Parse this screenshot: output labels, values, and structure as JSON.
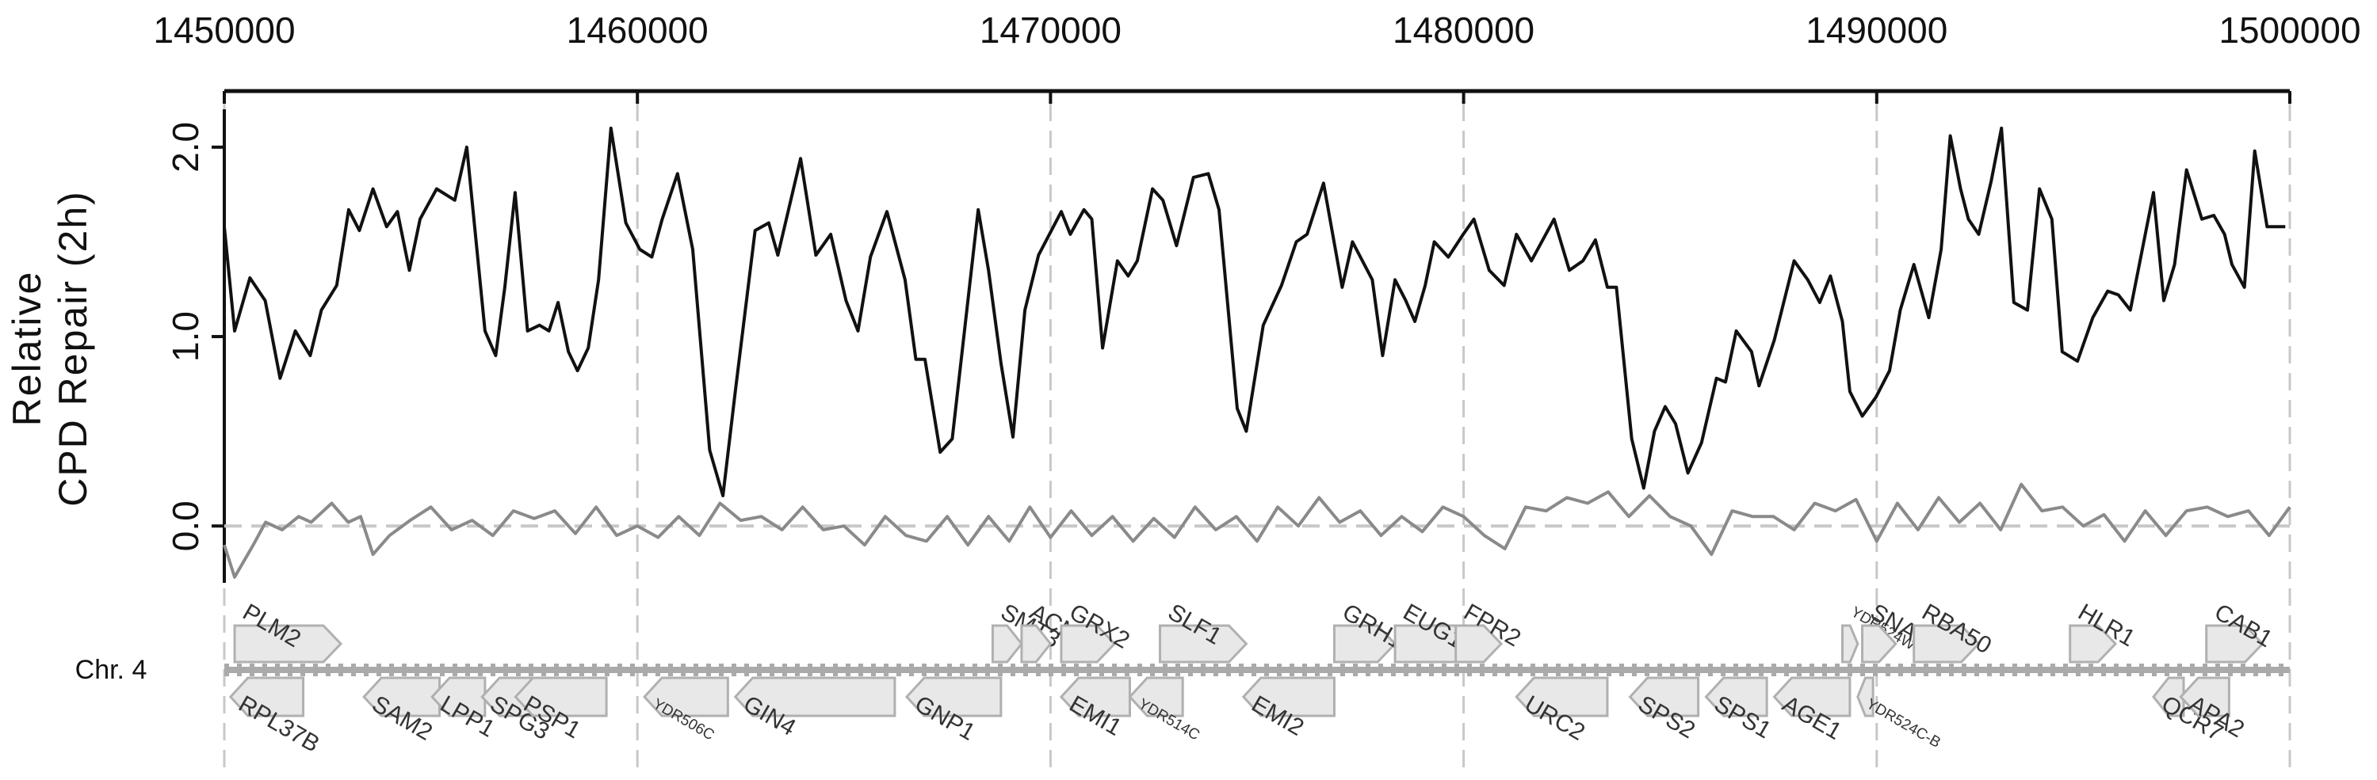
{
  "chart_data": {
    "type": "line",
    "ylabel": [
      "Relative",
      "CPD Repair (2h)"
    ],
    "track_label": "Chr. 4",
    "xlim": [
      1450000,
      1500000
    ],
    "xticks": [
      1450000,
      1460000,
      1470000,
      1480000,
      1490000,
      1500000
    ],
    "ylim": [
      -0.3,
      2.2
    ],
    "yticks": [
      {
        "value": 0,
        "label": "0.0"
      },
      {
        "value": 1,
        "label": "1.0"
      },
      {
        "value": 2,
        "label": "2.0"
      }
    ],
    "grid": "x",
    "hline": 0,
    "series": [
      {
        "color": "#111111",
        "x": [
          1450000,
          1450250,
          1450620,
          1450990,
          1451350,
          1451720,
          1452080,
          1452350,
          1452720,
          1453010,
          1453270,
          1453600,
          1453930,
          1454190,
          1454480,
          1454740,
          1455140,
          1455580,
          1455870,
          1456310,
          1456570,
          1456790,
          1457040,
          1457340,
          1457630,
          1457860,
          1458080,
          1458330,
          1458550,
          1458810,
          1459060,
          1459360,
          1459720,
          1460060,
          1460350,
          1460600,
          1460970,
          1461340,
          1461750,
          1462070,
          1462370,
          1462850,
          1463180,
          1463400,
          1463950,
          1464320,
          1464680,
          1465050,
          1465340,
          1465640,
          1466040,
          1466480,
          1466740,
          1466960,
          1467330,
          1467620,
          1468250,
          1468500,
          1468800,
          1469090,
          1469380,
          1469710,
          1470260,
          1470480,
          1470810,
          1471000,
          1471260,
          1471620,
          1471880,
          1472100,
          1472470,
          1472720,
          1473050,
          1473460,
          1473820,
          1474080,
          1474520,
          1474740,
          1475150,
          1475590,
          1475950,
          1476210,
          1476610,
          1477060,
          1477310,
          1477790,
          1478040,
          1478340,
          1478600,
          1478820,
          1479070,
          1479290,
          1479630,
          1479990,
          1480250,
          1480620,
          1480980,
          1481280,
          1481640,
          1482190,
          1482560,
          1482890,
          1483190,
          1483480,
          1483700,
          1484070,
          1484360,
          1484620,
          1484880,
          1485130,
          1485430,
          1485760,
          1486120,
          1486340,
          1486600,
          1486970,
          1487150,
          1487520,
          1488000,
          1488330,
          1488620,
          1488880,
          1489170,
          1489350,
          1489650,
          1489980,
          1490310,
          1490570,
          1490900,
          1491260,
          1491560,
          1491780,
          1492030,
          1492220,
          1492470,
          1492770,
          1493020,
          1493320,
          1493650,
          1493940,
          1494240,
          1494490,
          1494860,
          1495230,
          1495590,
          1495850,
          1496140,
          1496700,
          1496950,
          1497210,
          1497500,
          1497870,
          1498160,
          1498420,
          1498600,
          1498900,
          1499150,
          1499450,
          1499890
        ],
        "values": [
          1.58,
          1.03,
          1.31,
          1.19,
          0.78,
          1.03,
          0.9,
          1.14,
          1.27,
          1.67,
          1.56,
          1.78,
          1.58,
          1.66,
          1.35,
          1.62,
          1.78,
          1.72,
          2.0,
          1.03,
          0.9,
          1.26,
          1.76,
          1.03,
          1.06,
          1.03,
          1.18,
          0.92,
          0.82,
          0.94,
          1.3,
          2.1,
          1.6,
          1.46,
          1.42,
          1.62,
          1.86,
          1.46,
          0.4,
          0.16,
          0.71,
          1.56,
          1.6,
          1.43,
          1.94,
          1.43,
          1.54,
          1.19,
          1.03,
          1.42,
          1.66,
          1.3,
          0.88,
          0.88,
          0.39,
          0.46,
          1.67,
          1.35,
          0.86,
          0.47,
          1.14,
          1.43,
          1.66,
          1.54,
          1.67,
          1.62,
          0.94,
          1.4,
          1.32,
          1.4,
          1.78,
          1.72,
          1.48,
          1.84,
          1.86,
          1.67,
          0.62,
          0.5,
          1.06,
          1.27,
          1.5,
          1.54,
          1.81,
          1.26,
          1.5,
          1.3,
          0.9,
          1.3,
          1.19,
          1.08,
          1.27,
          1.5,
          1.42,
          1.54,
          1.62,
          1.35,
          1.27,
          1.54,
          1.4,
          1.62,
          1.35,
          1.4,
          1.51,
          1.26,
          1.26,
          0.46,
          0.2,
          0.5,
          0.63,
          0.54,
          0.28,
          0.44,
          0.78,
          0.76,
          1.03,
          0.92,
          0.74,
          0.98,
          1.4,
          1.3,
          1.18,
          1.32,
          1.08,
          0.71,
          0.58,
          0.68,
          0.82,
          1.14,
          1.38,
          1.1,
          1.46,
          2.06,
          1.78,
          1.62,
          1.54,
          1.82,
          2.1,
          1.18,
          1.14,
          1.78,
          1.62,
          0.92,
          0.87,
          1.1,
          1.24,
          1.22,
          1.14,
          1.76,
          1.19,
          1.38,
          1.88,
          1.62,
          1.64,
          1.54,
          1.38,
          1.26,
          1.98,
          1.58,
          1.58
        ]
      },
      {
        "color": "#8a8a8a",
        "x": [
          1450000,
          1450250,
          1450700,
          1451000,
          1451400,
          1451800,
          1452100,
          1452600,
          1453000,
          1453300,
          1453600,
          1454000,
          1454500,
          1455000,
          1455500,
          1456000,
          1456500,
          1457000,
          1457500,
          1458000,
          1458500,
          1459000,
          1459500,
          1460000,
          1460500,
          1461000,
          1461500,
          1462000,
          1462500,
          1463000,
          1463500,
          1464000,
          1464500,
          1465000,
          1465500,
          1466000,
          1466500,
          1467000,
          1467500,
          1468000,
          1468500,
          1469000,
          1469500,
          1470000,
          1470500,
          1471000,
          1471500,
          1472000,
          1472500,
          1473000,
          1473500,
          1474000,
          1474500,
          1475000,
          1475500,
          1476000,
          1476500,
          1477000,
          1477500,
          1478000,
          1478500,
          1479000,
          1479500,
          1480000,
          1480500,
          1481000,
          1481500,
          1482000,
          1482500,
          1483000,
          1483500,
          1484000,
          1484500,
          1485000,
          1485500,
          1486000,
          1486500,
          1487000,
          1487500,
          1488000,
          1488500,
          1489000,
          1489500,
          1490000,
          1490500,
          1491000,
          1491500,
          1492000,
          1492500,
          1493000,
          1493500,
          1494000,
          1494500,
          1495000,
          1495500,
          1496000,
          1496500,
          1497000,
          1497500,
          1498000,
          1498500,
          1499000,
          1499500,
          1500000
        ],
        "values": [
          -0.1,
          -0.27,
          -0.1,
          0.02,
          -0.02,
          0.05,
          0.02,
          0.12,
          0.02,
          0.05,
          -0.15,
          -0.05,
          0.03,
          0.1,
          -0.02,
          0.03,
          -0.05,
          0.08,
          0.04,
          0.08,
          -0.04,
          0.1,
          -0.05,
          0.0,
          -0.06,
          0.05,
          -0.05,
          0.12,
          0.03,
          0.05,
          -0.02,
          0.1,
          -0.02,
          0.0,
          -0.1,
          0.05,
          -0.05,
          -0.08,
          0.05,
          -0.1,
          0.05,
          -0.08,
          0.1,
          -0.06,
          0.08,
          -0.05,
          0.05,
          -0.08,
          0.04,
          -0.06,
          0.1,
          -0.02,
          0.05,
          -0.08,
          0.1,
          0.0,
          0.15,
          0.02,
          0.08,
          -0.05,
          0.05,
          -0.03,
          0.1,
          0.05,
          -0.05,
          -0.12,
          0.1,
          0.08,
          0.15,
          0.12,
          0.18,
          0.05,
          0.16,
          0.05,
          0.0,
          -0.15,
          0.08,
          0.05,
          0.05,
          -0.02,
          0.12,
          0.08,
          0.14,
          -0.08,
          0.12,
          -0.02,
          0.15,
          0.02,
          0.12,
          -0.02,
          0.22,
          0.08,
          0.1,
          0.0,
          0.06,
          -0.08,
          0.08,
          -0.05,
          0.08,
          0.1,
          0.05,
          0.08,
          -0.05,
          0.1
        ]
      }
    ],
    "genes": [
      {
        "name": "PLM2",
        "start": 1450250,
        "end": 1452820,
        "strand": "+"
      },
      {
        "name": "SMT3",
        "start": 1468600,
        "end": 1469300,
        "strand": "+"
      },
      {
        "name": "ACN9",
        "start": 1469300,
        "end": 1470000,
        "strand": "+"
      },
      {
        "name": "GRX2",
        "start": 1470260,
        "end": 1471550,
        "strand": "+"
      },
      {
        "name": "SLF1",
        "start": 1472650,
        "end": 1474740,
        "strand": "+"
      },
      {
        "name": "GRH1",
        "start": 1476870,
        "end": 1478340,
        "strand": "+"
      },
      {
        "name": "EUG1",
        "start": 1478340,
        "end": 1480360,
        "strand": "+"
      },
      {
        "name": "FPR2",
        "start": 1479810,
        "end": 1480910,
        "strand": "+"
      },
      {
        "name": "YDR524W-C",
        "start": 1489170,
        "end": 1489540,
        "strand": "+"
      },
      {
        "name": "SNA2",
        "start": 1489650,
        "end": 1490460,
        "strand": "+"
      },
      {
        "name": "RBA50",
        "start": 1490900,
        "end": 1492470,
        "strand": "+"
      },
      {
        "name": "HLR1",
        "start": 1494680,
        "end": 1495780,
        "strand": "+"
      },
      {
        "name": "CAB1",
        "start": 1497980,
        "end": 1499340,
        "strand": "+"
      },
      {
        "name": "RPL37B",
        "start": 1450150,
        "end": 1451910,
        "strand": "-"
      },
      {
        "name": "SAM2",
        "start": 1453380,
        "end": 1455210,
        "strand": "-"
      },
      {
        "name": "LPP1",
        "start": 1455030,
        "end": 1456310,
        "strand": "-"
      },
      {
        "name": "SPG3",
        "start": 1456240,
        "end": 1457600,
        "strand": "-"
      },
      {
        "name": "PSP1",
        "start": 1457050,
        "end": 1459250,
        "strand": "-"
      },
      {
        "name": "YDR506C",
        "start": 1460170,
        "end": 1462190,
        "strand": "-"
      },
      {
        "name": "GIN4",
        "start": 1462370,
        "end": 1466230,
        "strand": "-"
      },
      {
        "name": "GNP1",
        "start": 1466520,
        "end": 1468800,
        "strand": "-"
      },
      {
        "name": "EMI1",
        "start": 1470260,
        "end": 1471920,
        "strand": "-"
      },
      {
        "name": "YDR514C",
        "start": 1471920,
        "end": 1473200,
        "strand": "-"
      },
      {
        "name": "EMI2",
        "start": 1474670,
        "end": 1476870,
        "strand": "-"
      },
      {
        "name": "URC2",
        "start": 1481280,
        "end": 1483480,
        "strand": "-"
      },
      {
        "name": "SPS2",
        "start": 1484030,
        "end": 1485680,
        "strand": "-"
      },
      {
        "name": "SPS1",
        "start": 1485870,
        "end": 1487340,
        "strand": "-"
      },
      {
        "name": "AGE1",
        "start": 1487520,
        "end": 1489350,
        "strand": "-"
      },
      {
        "name": "YDR524C-B",
        "start": 1489540,
        "end": 1489910,
        "strand": "-"
      },
      {
        "name": "QCR7",
        "start": 1496700,
        "end": 1497430,
        "strand": "-"
      },
      {
        "name": "APA2",
        "start": 1497360,
        "end": 1498530,
        "strand": "-"
      }
    ]
  }
}
